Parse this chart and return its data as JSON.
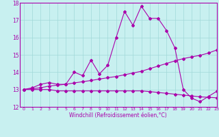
{
  "xlabel": "Windchill (Refroidissement éolien,°C)",
  "background_color": "#c8f0f0",
  "line_color": "#aa00aa",
  "grid_color": "#a0d8d8",
  "xlim": [
    -0.5,
    23
  ],
  "ylim": [
    12,
    18
  ],
  "yticks": [
    12,
    13,
    14,
    15,
    16,
    17,
    18
  ],
  "xticks": [
    0,
    1,
    2,
    3,
    4,
    5,
    6,
    7,
    8,
    9,
    10,
    11,
    12,
    13,
    14,
    15,
    16,
    17,
    18,
    19,
    20,
    21,
    22,
    23
  ],
  "series1_x": [
    0,
    1,
    2,
    3,
    4,
    5,
    6,
    7,
    8,
    9,
    10,
    11,
    12,
    13,
    14,
    15,
    16,
    17,
    18,
    19,
    20,
    21,
    22,
    23
  ],
  "series1_y": [
    13.0,
    13.1,
    13.3,
    13.4,
    13.3,
    13.3,
    14.0,
    13.8,
    14.7,
    13.9,
    14.4,
    16.0,
    17.5,
    16.7,
    17.8,
    17.1,
    17.1,
    16.4,
    15.4,
    13.0,
    12.5,
    12.3,
    12.6,
    12.9
  ],
  "series2_x": [
    0,
    1,
    2,
    3,
    4,
    5,
    6,
    7,
    8,
    9,
    10,
    11,
    12,
    13,
    14,
    15,
    16,
    17,
    18,
    19,
    20,
    21,
    22,
    23
  ],
  "series2_y": [
    13.0,
    13.05,
    13.1,
    13.2,
    13.25,
    13.3,
    13.38,
    13.45,
    13.52,
    13.6,
    13.68,
    13.75,
    13.85,
    13.95,
    14.05,
    14.2,
    14.35,
    14.5,
    14.65,
    14.78,
    14.88,
    14.97,
    15.1,
    15.28
  ],
  "series3_x": [
    0,
    1,
    2,
    3,
    4,
    5,
    6,
    7,
    8,
    9,
    10,
    11,
    12,
    13,
    14,
    15,
    16,
    17,
    18,
    19,
    20,
    21,
    22,
    23
  ],
  "series3_y": [
    13.0,
    13.0,
    13.0,
    13.0,
    12.92,
    12.92,
    12.92,
    12.92,
    12.92,
    12.92,
    12.92,
    12.92,
    12.92,
    12.92,
    12.92,
    12.88,
    12.83,
    12.78,
    12.73,
    12.68,
    12.63,
    12.58,
    12.55,
    12.52
  ]
}
